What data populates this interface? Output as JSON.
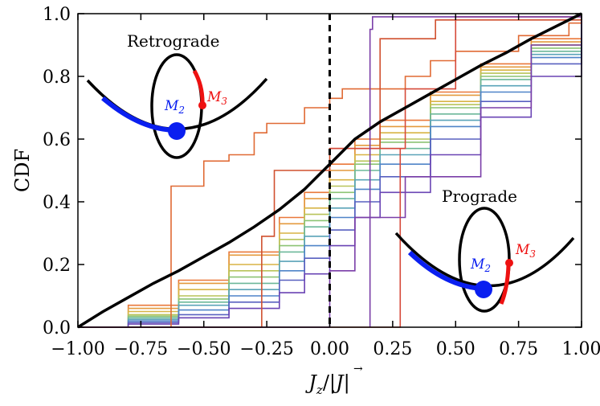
{
  "chart_data": {
    "type": "line",
    "title": "",
    "xlabel": "J_z/|J|",
    "xlabel_parts": {
      "main": "J",
      "sub": "z",
      "sep": "/|",
      "vec": "J",
      "end": "|"
    },
    "ylabel": "CDF",
    "xlim": [
      -1.0,
      1.0
    ],
    "ylim": [
      0.0,
      1.0
    ],
    "xticks": [
      -1.0,
      -0.75,
      -0.5,
      -0.25,
      0.0,
      0.25,
      0.5,
      0.75,
      1.0
    ],
    "xtick_labels": [
      "−1.00",
      "−0.75",
      "−0.50",
      "−0.25",
      "0.00",
      "0.25",
      "0.50",
      "0.75",
      "1.00"
    ],
    "yticks": [
      0.0,
      0.2,
      0.4,
      0.6,
      0.8,
      1.0
    ],
    "ytick_labels": [
      "0.0",
      "0.2",
      "0.4",
      "0.6",
      "0.8",
      "1.0"
    ],
    "grid": false,
    "vertical_line": {
      "x": 0.0,
      "style": "dashed",
      "color": "#000000"
    },
    "reference_curve": {
      "color": "#000000",
      "x": [
        -1.0,
        -0.9,
        -0.8,
        -0.7,
        -0.6,
        -0.5,
        -0.4,
        -0.3,
        -0.2,
        -0.1,
        -0.05,
        0.0,
        0.05,
        0.1,
        0.2,
        0.3,
        0.4,
        0.5,
        0.6,
        0.7,
        0.8,
        0.9,
        1.0
      ],
      "y": [
        0.0,
        0.05,
        0.095,
        0.14,
        0.18,
        0.225,
        0.27,
        0.32,
        0.375,
        0.44,
        0.48,
        0.52,
        0.56,
        0.6,
        0.655,
        0.7,
        0.745,
        0.79,
        0.835,
        0.875,
        0.92,
        0.96,
        1.0
      ]
    },
    "series": [
      {
        "color": "#e9783a",
        "x": [
          -1.0,
          -0.8,
          -0.6,
          -0.4,
          -0.2,
          -0.1,
          0.0,
          0.1,
          0.2,
          0.4,
          0.6,
          0.8,
          1.0
        ],
        "y": [
          0.0,
          0.07,
          0.15,
          0.24,
          0.35,
          0.43,
          0.52,
          0.6,
          0.66,
          0.75,
          0.84,
          0.92,
          1.0
        ]
      },
      {
        "color": "#e49a3e",
        "x": [
          -1.0,
          -0.8,
          -0.6,
          -0.4,
          -0.2,
          -0.1,
          0.0,
          0.1,
          0.2,
          0.4,
          0.6,
          0.8,
          1.0
        ],
        "y": [
          0.0,
          0.06,
          0.14,
          0.23,
          0.33,
          0.41,
          0.5,
          0.58,
          0.64,
          0.74,
          0.83,
          0.91,
          1.0
        ]
      },
      {
        "color": "#d8b445",
        "x": [
          -1.0,
          -0.8,
          -0.6,
          -0.4,
          -0.2,
          -0.1,
          0.0,
          0.1,
          0.2,
          0.4,
          0.6,
          0.8,
          1.0
        ],
        "y": [
          0.0,
          0.05,
          0.12,
          0.2,
          0.3,
          0.38,
          0.47,
          0.55,
          0.62,
          0.72,
          0.82,
          0.9,
          1.0
        ]
      },
      {
        "color": "#b8c45a",
        "x": [
          -1.0,
          -0.8,
          -0.6,
          -0.4,
          -0.2,
          -0.1,
          0.0,
          0.1,
          0.2,
          0.4,
          0.6,
          0.8,
          1.0
        ],
        "y": [
          0.0,
          0.04,
          0.1,
          0.18,
          0.28,
          0.36,
          0.45,
          0.53,
          0.6,
          0.71,
          0.81,
          0.9,
          1.0
        ]
      },
      {
        "color": "#8cc474",
        "x": [
          -1.0,
          -0.8,
          -0.6,
          -0.4,
          -0.2,
          -0.1,
          0.0,
          0.1,
          0.2,
          0.4,
          0.6,
          0.8,
          1.0
        ],
        "y": [
          0.0,
          0.035,
          0.09,
          0.16,
          0.26,
          0.34,
          0.43,
          0.52,
          0.59,
          0.7,
          0.8,
          0.89,
          1.0
        ]
      },
      {
        "color": "#6cb89a",
        "x": [
          -1.0,
          -0.8,
          -0.6,
          -0.4,
          -0.2,
          -0.1,
          0.0,
          0.1,
          0.2,
          0.4,
          0.6,
          0.8,
          1.0
        ],
        "y": [
          0.0,
          0.03,
          0.08,
          0.14,
          0.24,
          0.32,
          0.41,
          0.5,
          0.57,
          0.68,
          0.79,
          0.88,
          1.0
        ]
      },
      {
        "color": "#5aa3b8",
        "x": [
          -1.0,
          -0.8,
          -0.6,
          -0.4,
          -0.2,
          -0.1,
          0.0,
          0.1,
          0.2,
          0.4,
          0.6,
          0.8,
          1.0
        ],
        "y": [
          0.0,
          0.025,
          0.07,
          0.12,
          0.21,
          0.29,
          0.38,
          0.47,
          0.55,
          0.66,
          0.77,
          0.87,
          1.0
        ]
      },
      {
        "color": "#4f84c8",
        "x": [
          -1.0,
          -0.8,
          -0.6,
          -0.4,
          -0.2,
          -0.1,
          0.0,
          0.1,
          0.2,
          0.4,
          0.6,
          0.8,
          1.0
        ],
        "y": [
          0.0,
          0.02,
          0.055,
          0.1,
          0.18,
          0.26,
          0.35,
          0.44,
          0.52,
          0.64,
          0.75,
          0.86,
          1.0
        ]
      },
      {
        "color": "#5860c0",
        "x": [
          -1.0,
          -0.8,
          -0.6,
          -0.4,
          -0.2,
          -0.1,
          0.0,
          0.1,
          0.2,
          0.4,
          0.6,
          0.8,
          1.0
        ],
        "y": [
          0.0,
          0.015,
          0.04,
          0.08,
          0.15,
          0.22,
          0.31,
          0.4,
          0.48,
          0.6,
          0.72,
          0.84,
          1.0
        ]
      },
      {
        "color": "#6a44b4",
        "x": [
          -1.0,
          -0.8,
          -0.6,
          -0.4,
          -0.2,
          -0.1,
          0.0,
          0.1,
          0.2,
          0.4,
          0.6,
          0.8,
          1.0
        ],
        "y": [
          0.0,
          0.01,
          0.03,
          0.06,
          0.11,
          0.17,
          0.26,
          0.35,
          0.43,
          0.55,
          0.67,
          0.8,
          1.0
        ]
      },
      {
        "color": "#e06a34",
        "x": [
          -1.0,
          -0.7,
          -0.63,
          -0.5,
          -0.4,
          -0.3,
          -0.25,
          -0.1,
          0.0,
          0.05,
          0.3,
          0.4,
          0.5,
          0.75,
          0.95,
          1.0
        ],
        "y": [
          0.0,
          0.0,
          0.45,
          0.53,
          0.55,
          0.62,
          0.65,
          0.7,
          0.73,
          0.76,
          0.8,
          0.85,
          0.88,
          0.93,
          0.97,
          1.0
        ]
      },
      {
        "color": "#d0502e",
        "x": [
          -1.0,
          -0.27,
          -0.27,
          -0.22,
          -0.22,
          0.0,
          0.0,
          0.2,
          0.2,
          0.42,
          0.42,
          1.0
        ],
        "y": [
          0.0,
          0.0,
          0.29,
          0.29,
          0.5,
          0.5,
          0.57,
          0.57,
          0.92,
          0.92,
          0.98,
          1.0
        ]
      },
      {
        "color": "#d64a3a",
        "x": [
          -1.0,
          0.28,
          0.28,
          0.0,
          0.0,
          0.3,
          0.3,
          0.5,
          0.5,
          1.0
        ],
        "y": [
          0.0,
          0.0,
          0.57,
          0.57,
          0.57,
          0.57,
          0.76,
          0.76,
          0.99,
          0.99
        ]
      },
      {
        "color": "#7a3ea8",
        "x": [
          0.16,
          0.16,
          0.17,
          0.17,
          0.28,
          0.28,
          0.5,
          0.5,
          1.0
        ],
        "y": [
          0.0,
          0.95,
          0.95,
          0.99,
          0.99,
          0.99,
          0.99,
          0.99,
          1.0
        ]
      },
      {
        "color": "#7a3ea8",
        "x": [
          -1.0,
          0.0,
          0.0,
          0.1,
          0.1,
          0.3,
          0.3,
          0.6,
          0.6,
          0.8,
          0.8,
          1.0
        ],
        "y": [
          0.0,
          0.0,
          0.18,
          0.18,
          0.35,
          0.35,
          0.48,
          0.48,
          0.7,
          0.7,
          0.9,
          1.0
        ]
      }
    ],
    "insets": [
      {
        "title": "Retrograde",
        "m2_label": "M",
        "m2_sub": "2",
        "m3_label": "M",
        "m3_sub": "3",
        "m2_color": "#0a1ff0",
        "m3_color": "#ee1111"
      },
      {
        "title": "Prograde",
        "m2_label": "M",
        "m2_sub": "2",
        "m3_label": "M",
        "m3_sub": "3",
        "m2_color": "#0a1ff0",
        "m3_color": "#ee1111"
      }
    ]
  }
}
